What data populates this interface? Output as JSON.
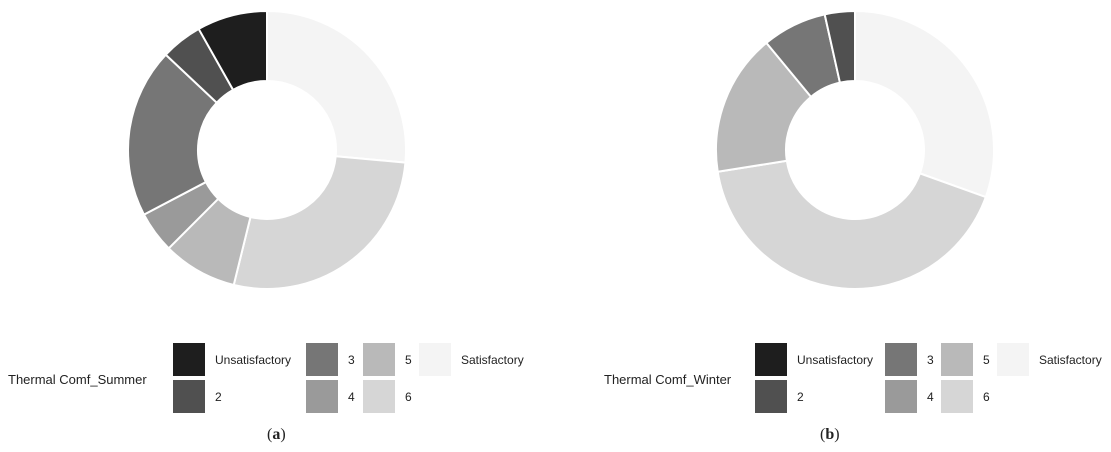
{
  "colors": {
    "Unsatisfactory": "#1e1e1e",
    "2": "#505050",
    "3": "#767676",
    "4": "#9a9a9a",
    "5": "#b9b9b9",
    "6": "#d6d6d6",
    "Satisfactory": "#f4f4f4"
  },
  "chart_data": [
    {
      "type": "pie",
      "donut": true,
      "legend_title": "Thermal Comf_Summer",
      "legend_items": [
        {
          "label": "Unsatisfactory",
          "category": "Unsatisfactory"
        },
        {
          "label": "2",
          "category": "2"
        },
        {
          "label": "3",
          "category": "3"
        },
        {
          "label": "4",
          "category": "4"
        },
        {
          "label": "5",
          "category": "5"
        },
        {
          "label": "6",
          "category": "6"
        },
        {
          "label": "Satisfactory",
          "category": "Satisfactory"
        }
      ],
      "categories": [
        "Satisfactory",
        "6",
        "5",
        "4",
        "3",
        "2",
        "Unsatisfactory"
      ],
      "values": [
        27.5,
        28.5,
        9.0,
        5.0,
        20.5,
        5.0,
        8.5
      ],
      "caption_letter": "a",
      "legend_position": "bottom"
    },
    {
      "type": "pie",
      "donut": true,
      "legend_title": "Thermal Comf_Winter",
      "legend_items": [
        {
          "label": "Unsatisfactory",
          "category": "Unsatisfactory"
        },
        {
          "label": "2",
          "category": "2"
        },
        {
          "label": "3",
          "category": "3"
        },
        {
          "label": "4",
          "category": "4"
        },
        {
          "label": "5",
          "category": "5"
        },
        {
          "label": "6",
          "category": "6"
        },
        {
          "label": "Satisfactory",
          "category": "Satisfactory"
        }
      ],
      "categories": [
        "Satisfactory",
        "6",
        "5",
        "3",
        "2"
      ],
      "values": [
        30.5,
        42.0,
        16.5,
        7.5,
        3.5
      ],
      "caption_letter": "b",
      "legend_position": "bottom"
    }
  ]
}
